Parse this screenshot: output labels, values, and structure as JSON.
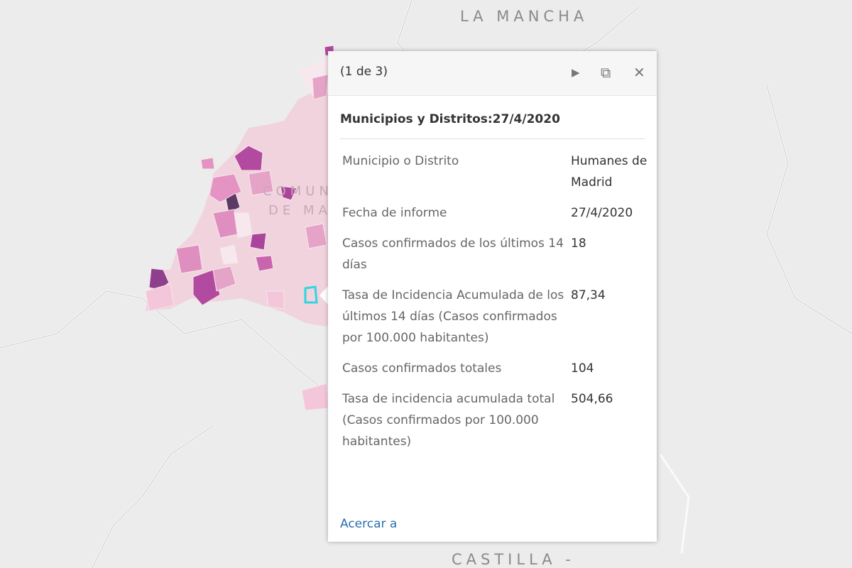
{
  "map_labels": [
    "LA MANCHA",
    "COMUNIDAD",
    "DE MADRID",
    "CASTILLA -"
  ],
  "popup": {
    "header": {
      "counter": "(1 de 3)"
    },
    "title": "Municipios y Distritos:27/4/2020",
    "rows": [
      [
        "Municipio o Distrito",
        "Humanes de Madrid"
      ],
      [
        "Fecha de informe",
        "27/4/2020"
      ],
      [
        "Casos confirmados de los últimos 14 días",
        "18"
      ],
      [
        "Tasa de Incidencia Acumulada de los últimos 14 días (Casos confirmados por 100.000 habitantes)",
        "87,34"
      ],
      [
        "Casos confirmados totales",
        "104"
      ],
      [
        "Tasa de incidencia acumulada total (Casos confirmados por 100.000 habitantes)",
        "504,66"
      ]
    ],
    "link": "Acercar a"
  }
}
